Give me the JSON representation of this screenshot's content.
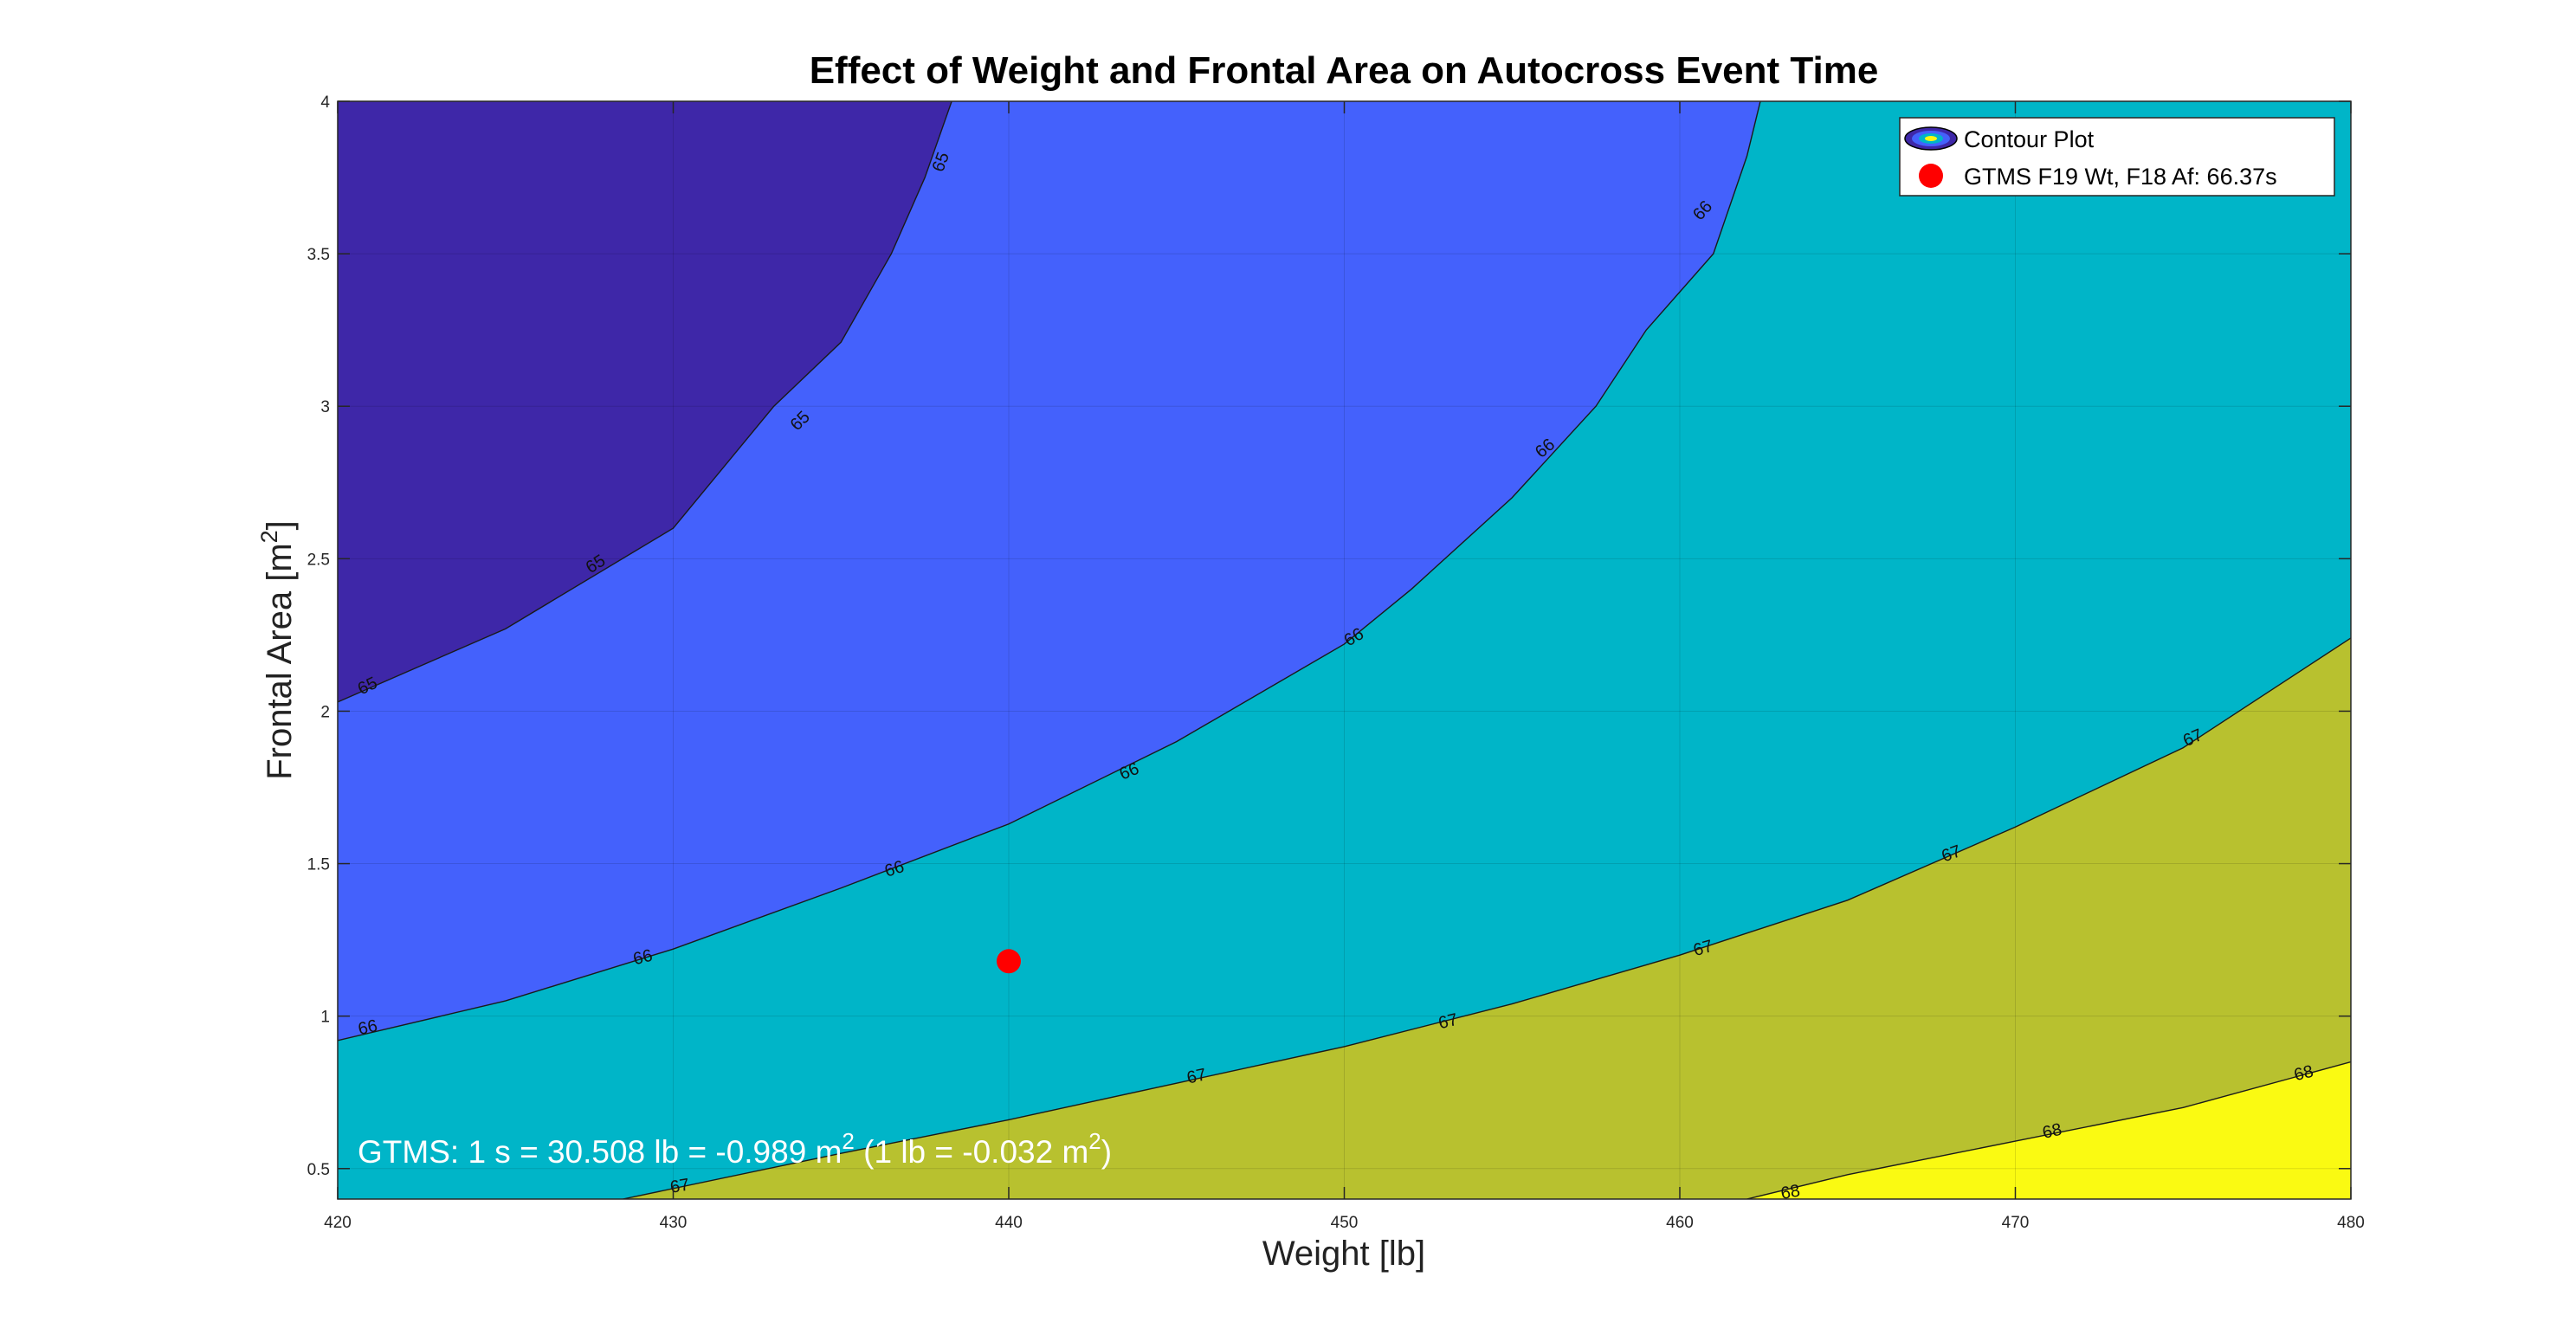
{
  "chart_data": {
    "type": "contour",
    "title": "Effect of Weight and Frontal Area on Autocross Event Time",
    "xlabel": "Weight [lb]",
    "ylabel_main": "Frontal Area [m",
    "ylabel_sup": "2",
    "ylabel_end": "]",
    "xlim": [
      420,
      480
    ],
    "ylim": [
      0.4,
      4
    ],
    "xticks": [
      420,
      430,
      440,
      450,
      460,
      470,
      480
    ],
    "xtick_labels": [
      "420",
      "430",
      "440",
      "450",
      "460",
      "470",
      "480"
    ],
    "yticks": [
      0.5,
      1,
      1.5,
      2,
      2.5,
      3,
      3.5,
      4
    ],
    "ytick_labels": [
      "0.5",
      "1",
      "1.5",
      "2",
      "2.5",
      "3",
      "3.5",
      "4"
    ],
    "grid": true,
    "levels": [
      {
        "label": "65",
        "color": "#3e27a8",
        "fill_above": false,
        "curve": [
          [
            420,
            2.03
          ],
          [
            425,
            2.27
          ],
          [
            430,
            2.6
          ],
          [
            431.5,
            2.8
          ],
          [
            433,
            3.0
          ],
          [
            435,
            3.21
          ],
          [
            436.5,
            3.5
          ],
          [
            437.5,
            3.75
          ],
          [
            438.3,
            4.0
          ]
        ]
      },
      {
        "label": "66",
        "color": "#4461fc",
        "fill_above": false,
        "curve": [
          [
            420,
            0.92
          ],
          [
            425,
            1.05
          ],
          [
            430,
            1.22
          ],
          [
            435,
            1.42
          ],
          [
            440,
            1.63
          ],
          [
            445,
            1.9
          ],
          [
            450,
            2.22
          ],
          [
            452,
            2.4
          ],
          [
            455,
            2.7
          ],
          [
            457.5,
            3.0
          ],
          [
            459,
            3.25
          ],
          [
            461,
            3.5
          ],
          [
            462,
            3.82
          ],
          [
            462.4,
            4.0
          ]
        ]
      },
      {
        "label": "67",
        "color": "#00b5c8",
        "fill_above": false,
        "curve": [
          [
            428.5,
            0.4
          ],
          [
            435,
            0.55
          ],
          [
            440,
            0.66
          ],
          [
            445,
            0.78
          ],
          [
            450,
            0.9
          ],
          [
            455,
            1.04
          ],
          [
            460,
            1.2
          ],
          [
            465,
            1.38
          ],
          [
            470,
            1.62
          ],
          [
            475,
            1.88
          ],
          [
            480,
            2.24
          ]
        ]
      },
      {
        "label": "68",
        "color": "#b8c12f",
        "fill_above": false,
        "curve": [
          [
            462,
            0.4
          ],
          [
            465,
            0.48
          ],
          [
            470,
            0.59
          ],
          [
            475,
            0.7
          ],
          [
            480,
            0.85
          ]
        ]
      }
    ],
    "top_region_color": "#fafa12",
    "series": [
      {
        "name": "Contour Plot",
        "type": "contour"
      },
      {
        "name": "GTMS F19 Wt, F18 Af: 66.37s",
        "type": "scatter",
        "x": [
          440
        ],
        "y": [
          1.18
        ],
        "color": "#ff0000"
      }
    ],
    "legend_position": "top-right",
    "contour_labels": [
      {
        "text": "65",
        "x": 438.0,
        "y": 3.8,
        "angle": -70
      },
      {
        "text": "65",
        "x": 433.8,
        "y": 2.95,
        "angle": -45
      },
      {
        "text": "65",
        "x": 427.7,
        "y": 2.48,
        "angle": -32
      },
      {
        "text": "65",
        "x": 420.9,
        "y": 2.08,
        "angle": -25
      },
      {
        "text": "66",
        "x": 420.9,
        "y": 0.96,
        "angle": -12
      },
      {
        "text": "66",
        "x": 429.1,
        "y": 1.19,
        "angle": -14
      },
      {
        "text": "66",
        "x": 436.6,
        "y": 1.48,
        "angle": -18
      },
      {
        "text": "66",
        "x": 443.6,
        "y": 1.8,
        "angle": -22
      },
      {
        "text": "66",
        "x": 450.3,
        "y": 2.24,
        "angle": -30
      },
      {
        "text": "66",
        "x": 456.0,
        "y": 2.86,
        "angle": -40
      },
      {
        "text": "66",
        "x": 460.7,
        "y": 3.64,
        "angle": -48
      },
      {
        "text": "67",
        "x": 430.2,
        "y": 0.44,
        "angle": -10
      },
      {
        "text": "67",
        "x": 445.6,
        "y": 0.8,
        "angle": -12
      },
      {
        "text": "67",
        "x": 453.1,
        "y": 0.98,
        "angle": -14
      },
      {
        "text": "67",
        "x": 460.7,
        "y": 1.22,
        "angle": -16
      },
      {
        "text": "67",
        "x": 468.1,
        "y": 1.53,
        "angle": -20
      },
      {
        "text": "67",
        "x": 475.3,
        "y": 1.91,
        "angle": -24
      },
      {
        "text": "68",
        "x": 463.3,
        "y": 0.42,
        "angle": -10
      },
      {
        "text": "68",
        "x": 471.1,
        "y": 0.62,
        "angle": -12
      },
      {
        "text": "68",
        "x": 478.6,
        "y": 0.81,
        "angle": -14
      }
    ],
    "annotation": {
      "part1": "GTMS: 1 s = 30.508 lb = -0.989 m",
      "sup1": "2",
      "part2": " (1 lb = -0.032 m",
      "sup2": "2",
      "part3": ")"
    }
  }
}
